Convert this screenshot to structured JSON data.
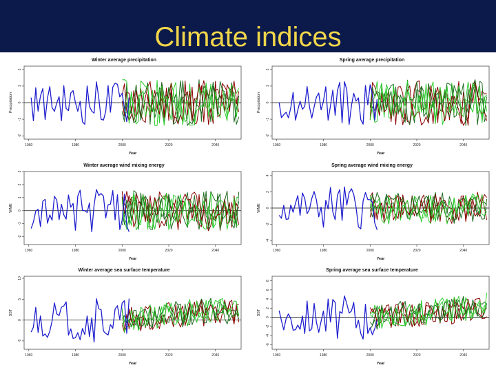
{
  "slide": {
    "title": "Climate indices"
  },
  "colors": {
    "header_bg": "#0b1a4a",
    "title": "#f2d64b",
    "observed": "#1f1fcf",
    "model_red": "#8b0000",
    "model_green_dark": "#1f6b1f",
    "model_green_light": "#2ecc2e"
  },
  "chart_data": [
    {
      "type": "line",
      "title": "Winter average precipitation",
      "xlabel": "Year",
      "ylabel": "Precipitation",
      "xlim": [
        1958,
        2051
      ],
      "ylim": [
        -2.2,
        2.2
      ],
      "yticks": [
        -2,
        -1,
        0,
        1,
        2
      ],
      "xticks": [
        1960,
        1980,
        2000,
        2020,
        2040
      ],
      "grid": false,
      "zero_line": true,
      "observed_range": [
        1961,
        2003
      ],
      "projection_range": [
        2000,
        2050
      ],
      "projection_scale": 1.0,
      "projection_trend": 0,
      "seed": 11
    },
    {
      "type": "line",
      "title": "Spring average precipitation",
      "xlabel": "Year",
      "ylabel": "Precipitation",
      "xlim": [
        1958,
        2051
      ],
      "ylim": [
        -2.2,
        2.2
      ],
      "yticks": [
        -2,
        -1,
        0,
        1,
        2
      ],
      "xticks": [
        1960,
        1980,
        2000,
        2020,
        2040
      ],
      "grid": false,
      "zero_line": true,
      "observed_range": [
        1961,
        2003
      ],
      "projection_range": [
        2000,
        2050
      ],
      "projection_scale": 1.0,
      "projection_trend": 0,
      "seed": 23
    },
    {
      "type": "line",
      "title": "Winter average wind mixing energy",
      "xlabel": "Year",
      "ylabel": "WME",
      "xlim": [
        1958,
        2051
      ],
      "ylim": [
        -2.6,
        3.0
      ],
      "yticks": [
        -2,
        -1,
        0,
        1,
        2,
        3
      ],
      "xticks": [
        1960,
        1980,
        2000,
        2020,
        2040
      ],
      "grid": false,
      "zero_line": true,
      "observed_range": [
        1961,
        2003
      ],
      "projection_range": [
        2000,
        2050
      ],
      "projection_scale": 1.1,
      "projection_trend": 0,
      "seed": 37
    },
    {
      "type": "line",
      "title": "Spring average wind mixing energy",
      "xlabel": "Year",
      "ylabel": "WME",
      "xlim": [
        1958,
        2051
      ],
      "ylim": [
        -4.5,
        4.5
      ],
      "yticks": [
        -4,
        -2,
        0,
        2,
        4
      ],
      "xticks": [
        1960,
        1980,
        2000,
        2020,
        2040
      ],
      "grid": false,
      "zero_line": true,
      "observed_range": [
        1961,
        2003
      ],
      "projection_range": [
        2000,
        2050
      ],
      "projection_scale": 1.4,
      "projection_trend": 0,
      "seed": 41
    },
    {
      "type": "line",
      "title": "Winter average sea surface temperature",
      "xlabel": "Year",
      "ylabel": "SST",
      "xlim": [
        1958,
        2051
      ],
      "ylim": [
        -7,
        10.5
      ],
      "yticks": [
        -5,
        0,
        5,
        10
      ],
      "xticks": [
        1960,
        1980,
        2000,
        2020,
        2040
      ],
      "grid": false,
      "zero_line": true,
      "observed_range": [
        1961,
        2003
      ],
      "projection_range": [
        2000,
        2050
      ],
      "projection_scale": 2.2,
      "projection_trend": 3.5,
      "seed": 53
    },
    {
      "type": "line",
      "title": "Spring average sea surface temperature",
      "xlabel": "Year",
      "ylabel": "SST",
      "xlim": [
        1958,
        2051
      ],
      "ylim": [
        -7,
        9
      ],
      "yticks": [
        -6,
        -4,
        -2,
        0,
        2,
        4,
        6,
        8
      ],
      "xticks": [
        1960,
        1980,
        2000,
        2020,
        2040
      ],
      "grid": false,
      "zero_line": true,
      "observed_range": [
        1961,
        2003
      ],
      "projection_range": [
        2000,
        2050
      ],
      "projection_scale": 2.0,
      "projection_trend": 3.0,
      "seed": 67
    }
  ]
}
